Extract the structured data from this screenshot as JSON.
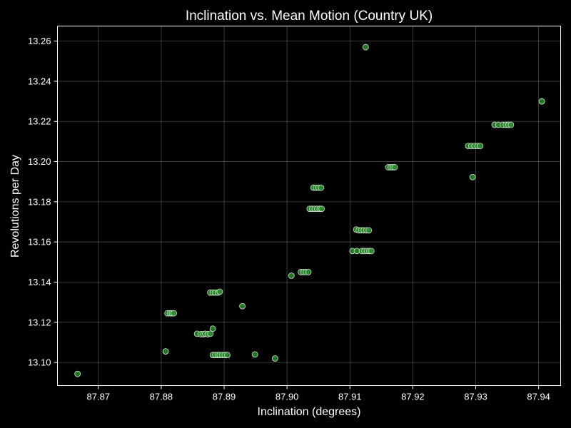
{
  "chart_data": {
    "type": "scatter",
    "title": "Inclination vs. Mean Motion (Country UK)",
    "xlabel": "Inclination (degrees)",
    "ylabel": "Revolutions per Day",
    "xlim": [
      87.8635,
      87.9435
    ],
    "ylim": [
      13.0885,
      13.2675
    ],
    "xticks": [
      "87.87",
      "87.88",
      "87.89",
      "87.90",
      "87.91",
      "87.92",
      "87.93",
      "87.94"
    ],
    "yticks": [
      "13.10",
      "13.12",
      "13.14",
      "13.16",
      "13.18",
      "13.20",
      "13.22",
      "13.24",
      "13.26"
    ],
    "grid": true,
    "colors": {
      "background": "#000000",
      "point_fill": "#2e8b2e",
      "point_edge": "#cfe8cf",
      "text": "#ffffff"
    },
    "points": [
      {
        "x": 87.8667,
        "y": 13.0943
      },
      {
        "x": 87.8807,
        "y": 13.1055
      },
      {
        "x": 87.881,
        "y": 13.1245
      },
      {
        "x": 87.8814,
        "y": 13.1245
      },
      {
        "x": 87.8817,
        "y": 13.1245
      },
      {
        "x": 87.882,
        "y": 13.1245
      },
      {
        "x": 87.8857,
        "y": 13.1143
      },
      {
        "x": 87.8863,
        "y": 13.1141
      },
      {
        "x": 87.8867,
        "y": 13.1141
      },
      {
        "x": 87.887,
        "y": 13.1143
      },
      {
        "x": 87.8874,
        "y": 13.1141
      },
      {
        "x": 87.8878,
        "y": 13.1143
      },
      {
        "x": 87.8882,
        "y": 13.1168
      },
      {
        "x": 87.8878,
        "y": 13.1348
      },
      {
        "x": 87.8882,
        "y": 13.1348
      },
      {
        "x": 87.8886,
        "y": 13.1348
      },
      {
        "x": 87.889,
        "y": 13.1348
      },
      {
        "x": 87.8893,
        "y": 13.1352
      },
      {
        "x": 87.8882,
        "y": 13.1037
      },
      {
        "x": 87.8886,
        "y": 13.1037
      },
      {
        "x": 87.889,
        "y": 13.1037
      },
      {
        "x": 87.8893,
        "y": 13.1037
      },
      {
        "x": 87.8897,
        "y": 13.1037
      },
      {
        "x": 87.8901,
        "y": 13.1037
      },
      {
        "x": 87.8905,
        "y": 13.1037
      },
      {
        "x": 87.8929,
        "y": 13.128
      },
      {
        "x": 87.8949,
        "y": 13.104
      },
      {
        "x": 87.8981,
        "y": 13.102
      },
      {
        "x": 87.9007,
        "y": 13.1432
      },
      {
        "x": 87.9022,
        "y": 13.145
      },
      {
        "x": 87.9026,
        "y": 13.145
      },
      {
        "x": 87.903,
        "y": 13.145
      },
      {
        "x": 87.9034,
        "y": 13.145
      },
      {
        "x": 87.9036,
        "y": 13.1765
      },
      {
        "x": 87.904,
        "y": 13.1765
      },
      {
        "x": 87.9044,
        "y": 13.1765
      },
      {
        "x": 87.9048,
        "y": 13.1765
      },
      {
        "x": 87.9052,
        "y": 13.1765
      },
      {
        "x": 87.9055,
        "y": 13.1765
      },
      {
        "x": 87.9042,
        "y": 13.187
      },
      {
        "x": 87.9046,
        "y": 13.187
      },
      {
        "x": 87.905,
        "y": 13.187
      },
      {
        "x": 87.9054,
        "y": 13.187
      },
      {
        "x": 87.9104,
        "y": 13.1555
      },
      {
        "x": 87.9111,
        "y": 13.1555
      },
      {
        "x": 87.9119,
        "y": 13.1555
      },
      {
        "x": 87.9123,
        "y": 13.1555
      },
      {
        "x": 87.9127,
        "y": 13.1555
      },
      {
        "x": 87.9131,
        "y": 13.1555
      },
      {
        "x": 87.9134,
        "y": 13.1555
      },
      {
        "x": 87.911,
        "y": 13.1662
      },
      {
        "x": 87.9114,
        "y": 13.1658
      },
      {
        "x": 87.9118,
        "y": 13.1658
      },
      {
        "x": 87.9122,
        "y": 13.1658
      },
      {
        "x": 87.9126,
        "y": 13.1658
      },
      {
        "x": 87.913,
        "y": 13.1658
      },
      {
        "x": 87.9125,
        "y": 13.257
      },
      {
        "x": 87.9161,
        "y": 13.1972
      },
      {
        "x": 87.9165,
        "y": 13.1972
      },
      {
        "x": 87.9168,
        "y": 13.1972
      },
      {
        "x": 87.9171,
        "y": 13.1972
      },
      {
        "x": 87.9288,
        "y": 13.2078
      },
      {
        "x": 87.9293,
        "y": 13.2078
      },
      {
        "x": 87.9298,
        "y": 13.2078
      },
      {
        "x": 87.9303,
        "y": 13.2078
      },
      {
        "x": 87.9307,
        "y": 13.2078
      },
      {
        "x": 87.9295,
        "y": 13.1923
      },
      {
        "x": 87.933,
        "y": 13.2183
      },
      {
        "x": 87.9336,
        "y": 13.2183
      },
      {
        "x": 87.9343,
        "y": 13.2183
      },
      {
        "x": 87.9348,
        "y": 13.2183
      },
      {
        "x": 87.9352,
        "y": 13.2183
      },
      {
        "x": 87.9356,
        "y": 13.2183
      },
      {
        "x": 87.9405,
        "y": 13.23
      }
    ]
  }
}
